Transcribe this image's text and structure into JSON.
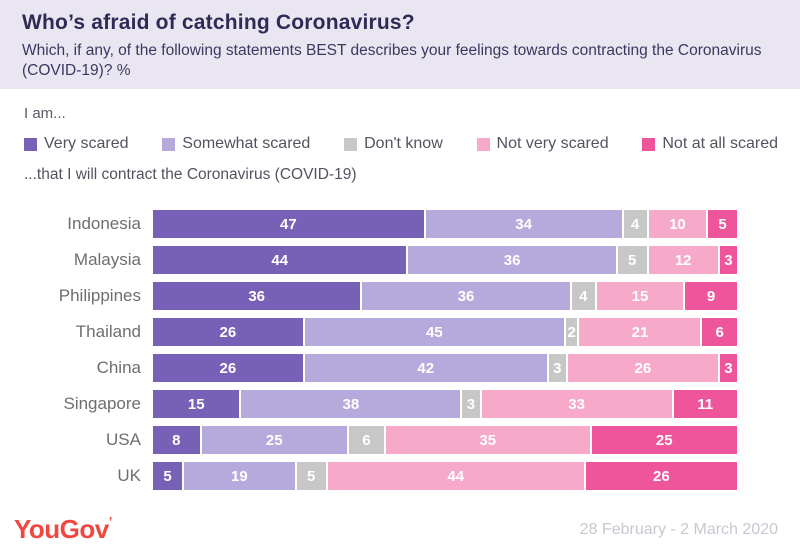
{
  "header": {
    "title": "Who’s afraid of catching Coronavirus?",
    "subtitle": "Which, if any, of the following statements BEST describes your feelings towards contracting the Coronavirus (COVID-19)? %"
  },
  "legend": {
    "intro": "I am...",
    "outro": "...that I will contract the Coronavirus (COVID-19)"
  },
  "chart_data": {
    "type": "bar",
    "orientation": "horizontal",
    "stacked": true,
    "xlim": [
      0,
      100
    ],
    "grid": false,
    "legend_position": "top",
    "title": "Who’s afraid of catching Coronavirus?",
    "xlabel": "",
    "ylabel": "",
    "categories": [
      "Indonesia",
      "Malaysia",
      "Philippines",
      "Thailand",
      "China",
      "Singapore",
      "USA",
      "UK"
    ],
    "series": [
      {
        "name": "Very scared",
        "color": "#7661b7",
        "values": [
          47,
          44,
          36,
          26,
          26,
          15,
          8,
          5
        ]
      },
      {
        "name": "Somewhat scared",
        "color": "#b6aadd",
        "values": [
          34,
          36,
          36,
          45,
          42,
          38,
          25,
          19
        ]
      },
      {
        "name": "Don't know",
        "color": "#c8c7c7",
        "values": [
          4,
          5,
          4,
          2,
          3,
          3,
          6,
          5
        ]
      },
      {
        "name": "Not very scared",
        "color": "#f6a9c9",
        "values": [
          10,
          12,
          15,
          21,
          26,
          33,
          35,
          44
        ]
      },
      {
        "name": "Not at all scared",
        "color": "#ef559b",
        "values": [
          5,
          3,
          9,
          6,
          3,
          11,
          25,
          26
        ]
      }
    ]
  },
  "footer": {
    "logo": "YouGov",
    "date_range": "28 February - 2 March 2020"
  },
  "colors": {
    "header_background": "#e9e6f1",
    "title_text": "#2f2a56",
    "country_label_text": "#6e6e6e",
    "brand_logo": "#f0483f",
    "date_text": "#c9c7d1"
  }
}
